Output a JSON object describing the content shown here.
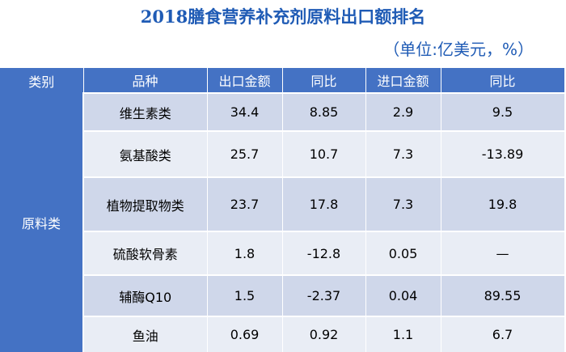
{
  "title": "2018膳食营养补充剂原料出口额排名",
  "unit_note": "（单位:亿美元，%）",
  "table": {
    "headers": [
      "类别",
      "品种",
      "出口金额",
      "同比",
      "进口金额",
      "同比"
    ],
    "category": "原料类",
    "rows": [
      [
        "维生素类",
        "34.4",
        "8.85",
        "2.9",
        "9.5"
      ],
      [
        "氨基酸类",
        "25.7",
        "10.7",
        "7.3",
        "-13.89"
      ],
      [
        "植物提取物类",
        "23.7",
        "17.8",
        "7.3",
        "19.8"
      ],
      [
        "硫酸软骨素",
        "1.8",
        "-12.8",
        "0.05",
        "—"
      ],
      [
        "辅酶Q10",
        "1.5",
        "-2.37",
        "0.04",
        "89.55"
      ],
      [
        "鱼油",
        "0.69",
        "0.92",
        "1.1",
        "6.7"
      ]
    ]
  },
  "colors": {
    "title": "#1f5bb5",
    "header_bg": "#4472c4",
    "row_odd": "#cfd7ea",
    "row_even": "#e9edf5"
  }
}
